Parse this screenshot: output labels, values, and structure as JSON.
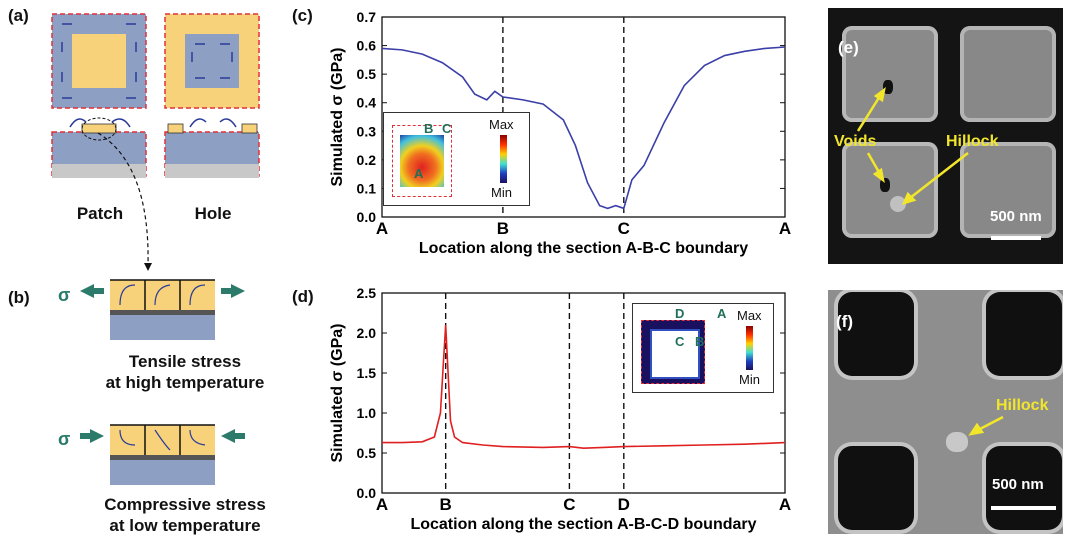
{
  "panels": {
    "a": {
      "label": "(a)",
      "patch": "Patch",
      "hole": "Hole",
      "colors": {
        "yellow": "#f7d27a",
        "blue": "#8d9fc3",
        "border": "#e0303a",
        "gray": "#c8c8c8",
        "arrow": "#2a3a9a"
      }
    },
    "b": {
      "label": "(b)",
      "sigma": "σ",
      "tensile_line1": "Tensile stress",
      "tensile_line2": "at high temperature",
      "compressive_line1": "Compressive stress",
      "compressive_line2": "at low temperature",
      "colors": {
        "arrow": "#2b7a6a"
      }
    },
    "c": {
      "label": "(c)",
      "inset_max": "Max",
      "inset_min": "Min",
      "inset_points": [
        "B",
        "C",
        "A"
      ]
    },
    "d": {
      "label": "(d)",
      "inset_max": "Max",
      "inset_min": "Min",
      "inset_points": [
        "D",
        "A",
        "C",
        "B"
      ]
    },
    "e": {
      "label": "(e)",
      "voids": "Voids",
      "hillock": "Hillock",
      "scale": "500 nm"
    },
    "f": {
      "label": "(f)",
      "hillock": "Hillock",
      "scale": "500 nm"
    }
  },
  "chart_data": [
    {
      "type": "line",
      "panel": "c",
      "ylabel": "Simulated σ (GPa)",
      "xlabel": "Location along the section A-B-C boundary",
      "ylim": [
        0,
        0.7
      ],
      "yticks": [
        "0.0",
        "0.1",
        "0.2",
        "0.3",
        "0.4",
        "0.5",
        "0.6",
        "0.7"
      ],
      "xticks": [
        {
          "label": "A",
          "x": 0
        },
        {
          "label": "B",
          "x": 0.3
        },
        {
          "label": "C",
          "x": 0.6
        },
        {
          "label": "A",
          "x": 1.0
        }
      ],
      "xlim": [
        0,
        1
      ],
      "vlines": [
        0.3,
        0.6
      ],
      "color": "#3b3fa8",
      "x": [
        0,
        0.05,
        0.1,
        0.15,
        0.2,
        0.23,
        0.26,
        0.28,
        0.3,
        0.35,
        0.4,
        0.45,
        0.48,
        0.51,
        0.54,
        0.56,
        0.58,
        0.6,
        0.62,
        0.65,
        0.7,
        0.75,
        0.8,
        0.85,
        0.9,
        0.95,
        1.0
      ],
      "y": [
        0.59,
        0.585,
        0.57,
        0.54,
        0.49,
        0.43,
        0.41,
        0.44,
        0.42,
        0.41,
        0.395,
        0.34,
        0.25,
        0.12,
        0.04,
        0.03,
        0.04,
        0.03,
        0.13,
        0.18,
        0.33,
        0.46,
        0.53,
        0.565,
        0.58,
        0.59,
        0.595
      ]
    },
    {
      "type": "line",
      "panel": "d",
      "ylabel": "Simulated σ (GPa)",
      "xlabel": "Location along the section A-B-C-D boundary",
      "ylim": [
        0,
        2.5
      ],
      "yticks": [
        "0.0",
        "0.5",
        "1.0",
        "1.5",
        "2.0",
        "2.5"
      ],
      "xticks": [
        {
          "label": "A",
          "x": 0
        },
        {
          "label": "B",
          "x": 0.158
        },
        {
          "label": "C",
          "x": 0.465
        },
        {
          "label": "D",
          "x": 0.6
        },
        {
          "label": "A",
          "x": 1.0
        }
      ],
      "xlim": [
        0,
        1
      ],
      "vlines": [
        0.158,
        0.465,
        0.6
      ],
      "color": "#e02020",
      "x": [
        0,
        0.05,
        0.1,
        0.13,
        0.145,
        0.152,
        0.158,
        0.164,
        0.17,
        0.18,
        0.2,
        0.25,
        0.3,
        0.4,
        0.465,
        0.5,
        0.55,
        0.6,
        0.7,
        0.8,
        0.9,
        1.0
      ],
      "y": [
        0.63,
        0.63,
        0.64,
        0.7,
        1.0,
        1.6,
        2.1,
        1.5,
        0.9,
        0.7,
        0.63,
        0.6,
        0.58,
        0.57,
        0.58,
        0.56,
        0.57,
        0.58,
        0.59,
        0.6,
        0.61,
        0.63
      ]
    }
  ]
}
